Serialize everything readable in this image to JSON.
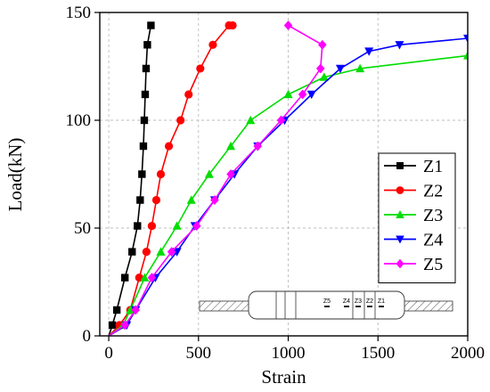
{
  "chart_data": {
    "type": "line",
    "xlabel": "Strain",
    "ylabel": "Load(kN)",
    "xlim": [
      -50,
      2000
    ],
    "ylim": [
      0,
      150
    ],
    "x_ticks": [
      0,
      500,
      1000,
      1500,
      2000
    ],
    "y_ticks": [
      0,
      50,
      100,
      150
    ],
    "grid": true,
    "legend_position": "right",
    "series": [
      {
        "name": "Z1",
        "color": "#000000",
        "marker": "square",
        "points": [
          [
            0,
            0
          ],
          [
            20,
            5
          ],
          [
            45,
            12
          ],
          [
            90,
            27
          ],
          [
            130,
            39
          ],
          [
            160,
            51
          ],
          [
            175,
            63
          ],
          [
            185,
            75
          ],
          [
            193,
            88
          ],
          [
            198,
            100
          ],
          [
            203,
            112
          ],
          [
            208,
            124
          ],
          [
            215,
            135
          ],
          [
            235,
            144
          ]
        ]
      },
      {
        "name": "Z2",
        "color": "#ff0000",
        "marker": "circle",
        "points": [
          [
            0,
            0
          ],
          [
            60,
            5
          ],
          [
            120,
            12
          ],
          [
            170,
            27
          ],
          [
            210,
            39
          ],
          [
            240,
            51
          ],
          [
            265,
            63
          ],
          [
            290,
            75
          ],
          [
            335,
            88
          ],
          [
            400,
            100
          ],
          [
            445,
            112
          ],
          [
            510,
            124
          ],
          [
            580,
            135
          ],
          [
            670,
            144
          ],
          [
            690,
            144
          ]
        ]
      },
      {
        "name": "Z3",
        "color": "#00dd00",
        "marker": "triangle-up",
        "points": [
          [
            0,
            0
          ],
          [
            80,
            5
          ],
          [
            120,
            12
          ],
          [
            200,
            27
          ],
          [
            290,
            39
          ],
          [
            380,
            51
          ],
          [
            460,
            63
          ],
          [
            560,
            75
          ],
          [
            680,
            88
          ],
          [
            790,
            100
          ],
          [
            1000,
            112
          ],
          [
            1200,
            120
          ],
          [
            1400,
            124
          ],
          [
            2000,
            130
          ]
        ]
      },
      {
        "name": "Z4",
        "color": "#0000ff",
        "marker": "triangle-down",
        "points": [
          [
            0,
            0
          ],
          [
            100,
            5
          ],
          [
            150,
            12
          ],
          [
            260,
            27
          ],
          [
            380,
            39
          ],
          [
            480,
            51
          ],
          [
            590,
            63
          ],
          [
            700,
            75
          ],
          [
            830,
            88
          ],
          [
            980,
            100
          ],
          [
            1130,
            112
          ],
          [
            1290,
            124
          ],
          [
            1450,
            132
          ],
          [
            1620,
            135
          ],
          [
            2000,
            138
          ]
        ]
      },
      {
        "name": "Z5",
        "color": "#ff00ff",
        "marker": "diamond",
        "points": [
          [
            0,
            0
          ],
          [
            90,
            5
          ],
          [
            150,
            12
          ],
          [
            240,
            27
          ],
          [
            350,
            39
          ],
          [
            490,
            51
          ],
          [
            590,
            63
          ],
          [
            680,
            75
          ],
          [
            830,
            88
          ],
          [
            960,
            100
          ],
          [
            1080,
            112
          ],
          [
            1180,
            124
          ],
          [
            1190,
            135
          ],
          [
            1000,
            144
          ]
        ]
      }
    ]
  },
  "specimen_diagram": {
    "gauge_labels": [
      "Z5",
      "Z4",
      "Z3",
      "Z2",
      "Z1"
    ]
  }
}
